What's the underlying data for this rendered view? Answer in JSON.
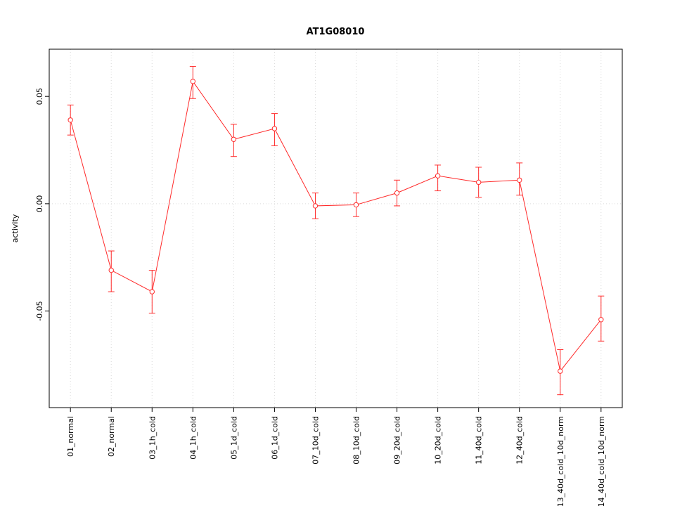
{
  "chart_data": {
    "type": "line",
    "title": "AT1G08010",
    "xlabel": "",
    "ylabel": "activity",
    "ylim": [
      -0.095,
      0.072
    ],
    "ytick_values": [
      0.05,
      0.0,
      -0.05
    ],
    "ytick_labels": [
      "0.05",
      "0.00",
      "-0.05"
    ],
    "grid": true,
    "legend": "none",
    "marker": "open-circle",
    "categories": [
      "01_normal",
      "02_normal",
      "03_1h_cold",
      "04_1h_cold",
      "05_1d_cold",
      "06_1d_cold",
      "07_10d_cold",
      "08_10d_cold",
      "09_20d_cold",
      "10_20d_cold",
      "11_40d_cold",
      "12_40d_cold",
      "13_40d_cold_10d_norm",
      "14_40d_cold_10d_norm"
    ],
    "series": [
      {
        "name": "activity",
        "color": "#ff2a2a",
        "values": [
          0.039,
          -0.031,
          -0.041,
          0.057,
          0.03,
          0.035,
          -0.001,
          -0.0005,
          0.005,
          0.013,
          0.01,
          0.011,
          -0.078,
          -0.054
        ],
        "error_low": [
          0.032,
          -0.041,
          -0.051,
          0.049,
          0.022,
          0.027,
          -0.007,
          -0.006,
          -0.001,
          0.006,
          0.003,
          0.004,
          -0.089,
          -0.064
        ],
        "error_high": [
          0.046,
          -0.022,
          -0.031,
          0.064,
          0.037,
          0.042,
          0.005,
          0.005,
          0.011,
          0.018,
          0.017,
          0.019,
          -0.068,
          -0.043
        ]
      }
    ],
    "colors": {
      "series": "#ff2a2a",
      "grid": "#d9d9d9",
      "axis": "#000000",
      "background": "#ffffff"
    }
  }
}
